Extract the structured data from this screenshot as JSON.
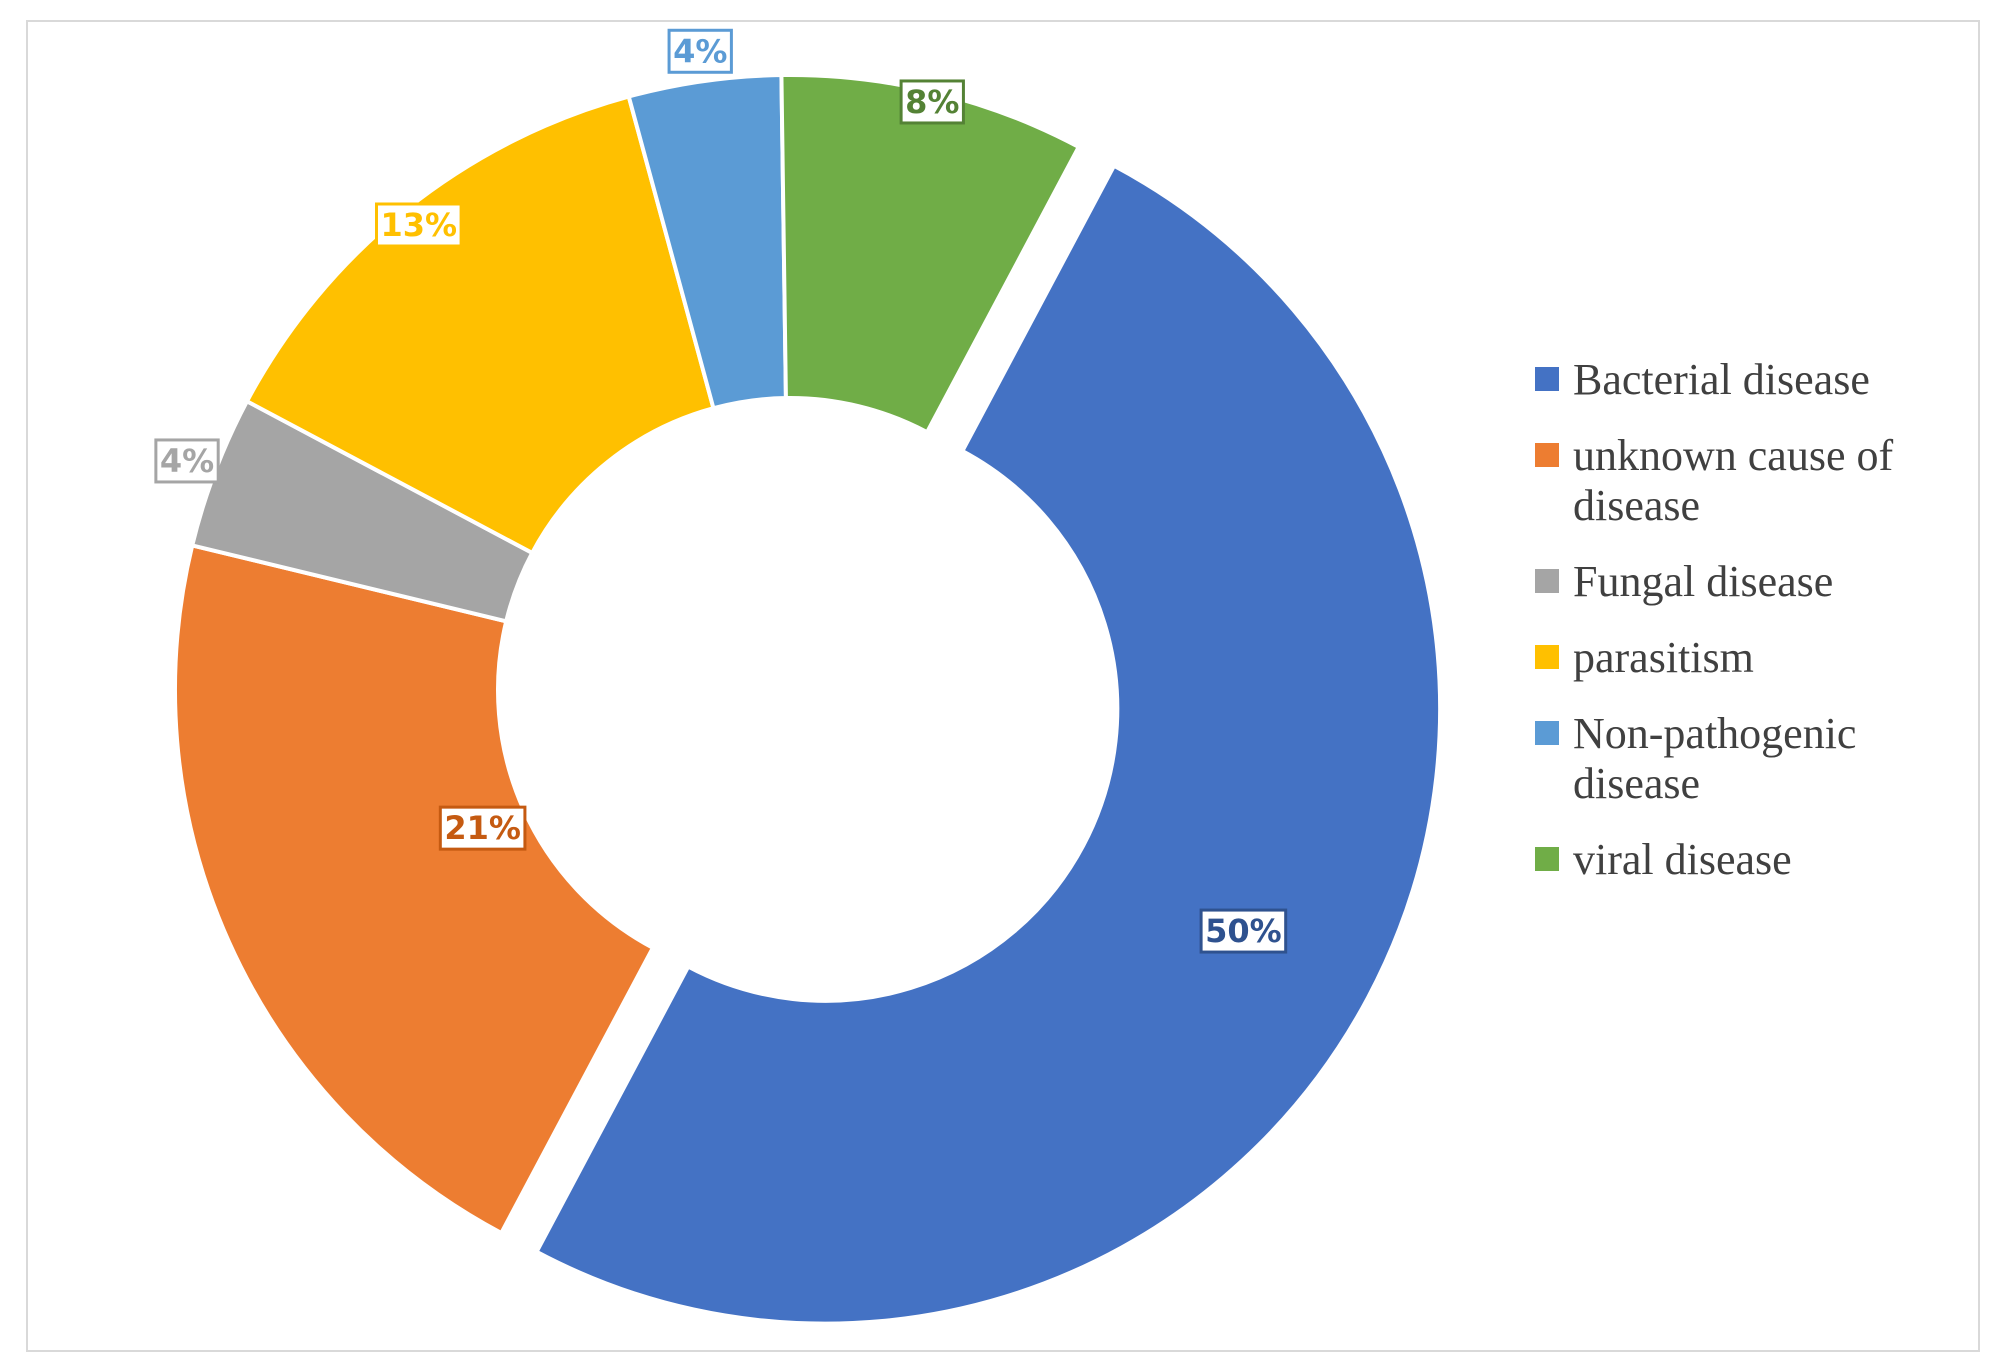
{
  "chart_data": {
    "type": "pie",
    "donut": true,
    "exploded_category": "Bacterial disease",
    "legend_position": "right",
    "categories": [
      "Bacterial disease",
      "unknown cause of disease",
      "Fungal disease",
      "parasitism",
      "Non-pathogenic disease",
      "viral disease"
    ],
    "values": [
      50,
      21,
      4,
      13,
      4,
      8
    ],
    "labels": [
      "50%",
      "21%",
      "4%",
      "13%",
      "4%",
      "8%"
    ],
    "colors": [
      "#4472C4",
      "#ED7D31",
      "#A5A5A5",
      "#FFC000",
      "#5B9BD5",
      "#70AD47"
    ],
    "label_colors": [
      "#2F528F",
      "#C55A11",
      "#A5A5A5",
      "#FFC000",
      "#5B9BD5",
      "#548235"
    ]
  }
}
